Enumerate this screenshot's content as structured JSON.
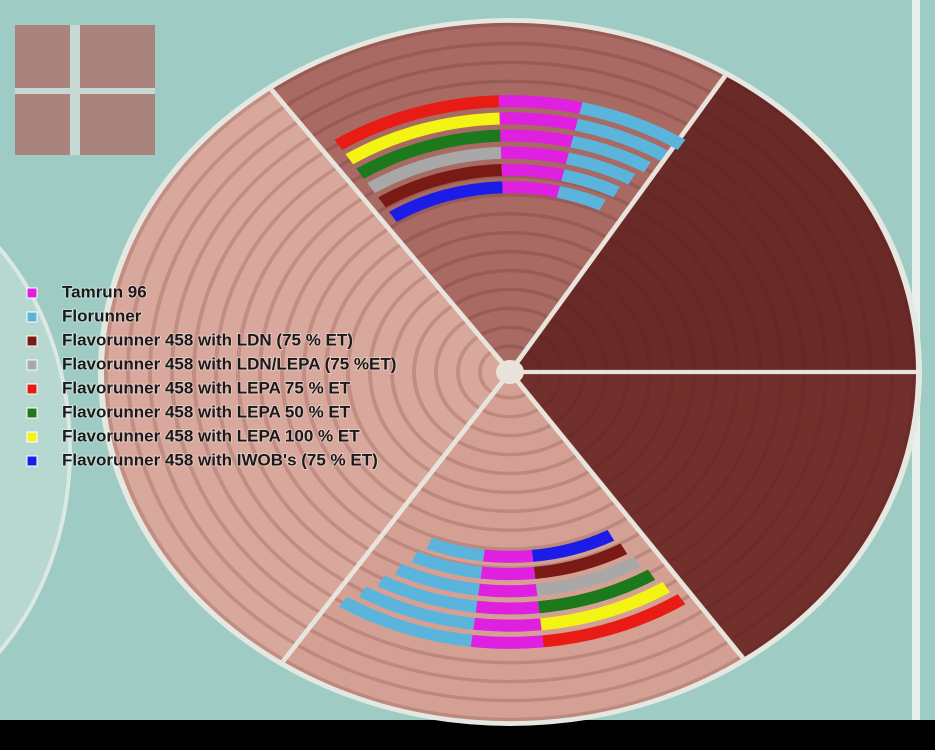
{
  "legend": {
    "items": [
      {
        "label": "Tamrun 96",
        "color": "#e020e0"
      },
      {
        "label": "Florunner",
        "color": "#5ab4dc"
      },
      {
        "label": "Flavorunner 458 with LDN (75 % ET)",
        "color": "#7a1a14"
      },
      {
        "label": "Flavorunner 458 with LDN/LEPA (75 %ET)",
        "color": "#a8a8a8"
      },
      {
        "label": "Flavorunner 458 with LEPA 75 % ET",
        "color": "#e81c14"
      },
      {
        "label": "Flavorunner 458 with LEPA 50 % ET",
        "color": "#1c7a1c"
      },
      {
        "label": "Flavorunner 458 with LEPA 100 % ET",
        "color": "#f4f414"
      },
      {
        "label": "Flavorunner 458 with IWOB's (75 % ET)",
        "color": "#1c1ce8"
      }
    ]
  }
}
